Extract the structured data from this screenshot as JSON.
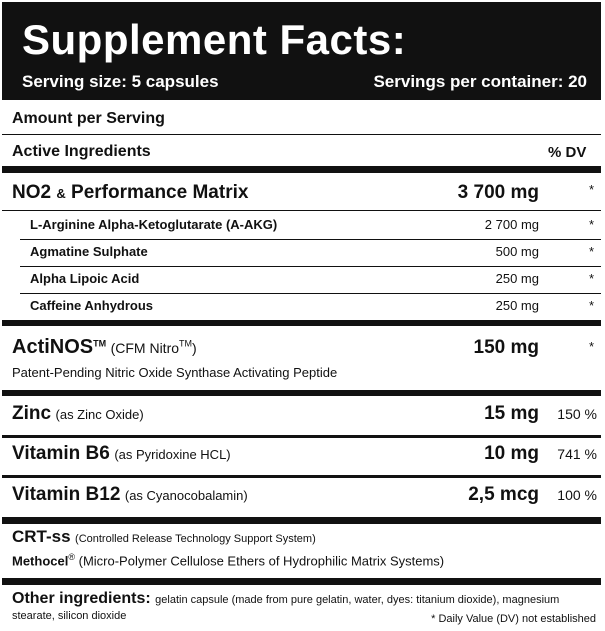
{
  "header": {
    "title": "Supplement Facts:",
    "serving_size": "Serving size: 5 capsules",
    "servings_per_container": "Servings per container: 20"
  },
  "amount_per_serving": "Amount per Serving",
  "columns": {
    "active": "Active Ingredients",
    "dv": "% DV"
  },
  "matrix": {
    "name": "NO2",
    "amp": "&",
    "name2": "Performance Matrix",
    "amount": "3 700 mg",
    "dv": "*",
    "items": [
      {
        "name": "L-Arginine Alpha-Ketoglutarate (A-AKG)",
        "amount": "2 700 mg",
        "dv": "*"
      },
      {
        "name": "Agmatine Sulphate",
        "amount": "500 mg",
        "dv": "*"
      },
      {
        "name": "Alpha Lipoic Acid",
        "amount": "250 mg",
        "dv": "*"
      },
      {
        "name": "Caffeine Anhydrous",
        "amount": "250 mg",
        "dv": "*"
      }
    ]
  },
  "actinos": {
    "name": "ActiNOS",
    "tm": "TM",
    "sub": "(CFM Nitro",
    "sub_tm": "TM",
    "sub_close": ")",
    "amount": "150 mg",
    "dv": "*",
    "desc": "Patent-Pending Nitric Oxide Synthase Activating Peptide"
  },
  "vitamins": [
    {
      "name": "Zinc",
      "sub": "(as Zinc Oxide)",
      "amount": "15 mg",
      "dv": "150 %"
    },
    {
      "name": "Vitamin B6",
      "sub": "(as Pyridoxine HCL)",
      "amount": "10 mg",
      "dv": "741 %"
    },
    {
      "name": "Vitamin B12",
      "sub": "(as Cyanocobalamin)",
      "amount": "2,5 mcg",
      "dv": "100 %"
    }
  ],
  "crt": {
    "name": "CRT-ss",
    "sub": "(Controlled Release Technology Support System)",
    "methocel": "Methocel",
    "reg": "®",
    "methocel_desc": "(Micro-Polymer Cellulose Ethers of Hydrophilic Matrix Systems)"
  },
  "other": {
    "label": "Other ingredients:",
    "text1": "gelatin capsule (made from pure gelatin, water, dyes: titanium dioxide), magnesium",
    "text2": "stearate, silicon dioxide",
    "footnote": "* Daily Value (DV) not established"
  }
}
